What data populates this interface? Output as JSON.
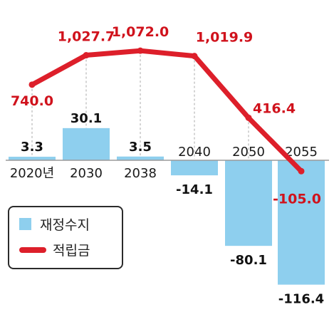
{
  "chart_data": {
    "type": "bar+line",
    "categories": [
      "2020년",
      "2030",
      "2038",
      "2040",
      "2050",
      "2055"
    ],
    "series": [
      {
        "name": "재정수지",
        "type": "bar",
        "values": [
          3.3,
          30.1,
          3.5,
          -14.1,
          -80.1,
          -116.4
        ],
        "labels": [
          "3.3",
          "30.1",
          "3.5",
          "-14.1",
          "-80.1",
          "-116.4"
        ]
      },
      {
        "name": "적립금",
        "type": "line",
        "values": [
          740.0,
          1027.7,
          1072.0,
          1019.9,
          416.4,
          -105.0
        ],
        "labels": [
          "740.0",
          "1,027.7",
          "1,072.0",
          "1,019.9",
          "416.4",
          "-105.0"
        ]
      }
    ],
    "legend_position": "bottom-left",
    "colors": {
      "bar": "#8ecfee",
      "line": "#dd1f2a",
      "line_label": "#d0121c",
      "bar_label": "#111111",
      "axis": "#9a9a9a",
      "guide": "#aaaaaa"
    }
  },
  "legend": {
    "bar_label": "재정수지",
    "line_label": "적립금"
  }
}
